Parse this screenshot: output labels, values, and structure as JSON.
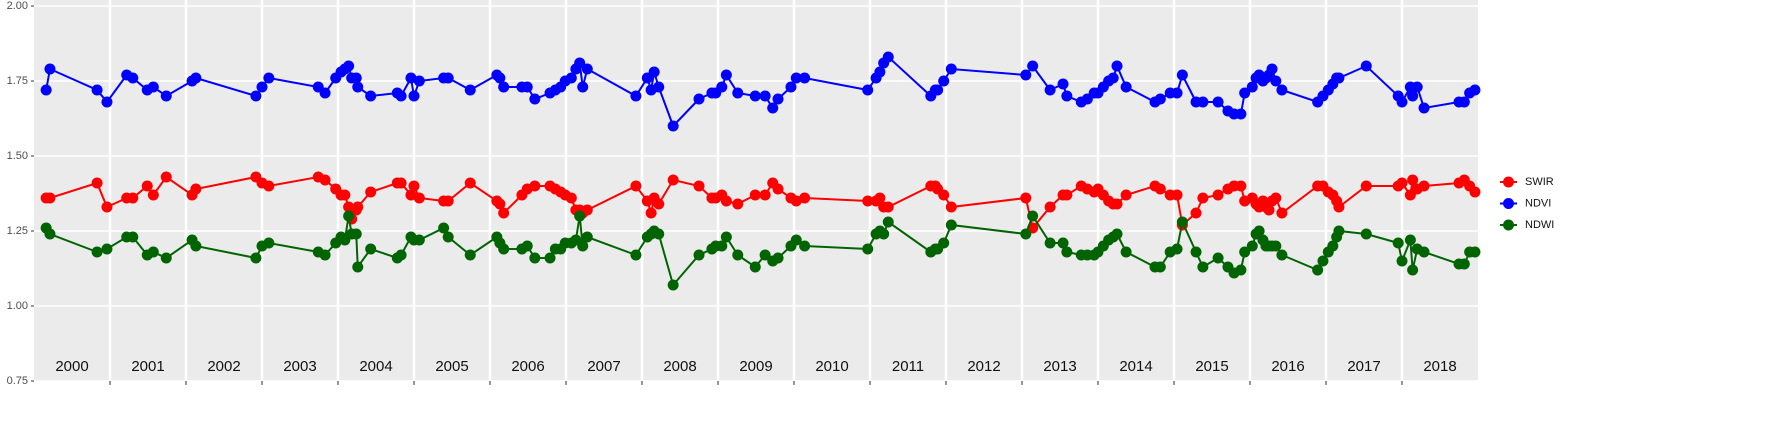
{
  "chart_data": {
    "type": "line",
    "x": [
      2000.16,
      2000.21,
      2000.83,
      2000.96,
      2001.22,
      2001.3,
      2001.49,
      2001.57,
      2001.74,
      2002.08,
      2002.13,
      2002.92,
      2003.0,
      2003.09,
      2003.74,
      2003.83,
      2003.97,
      2004.04,
      2004.09,
      2004.14,
      2004.18,
      2004.24,
      2004.26,
      2004.43,
      2004.78,
      2004.83,
      2004.96,
      2005.0,
      2005.07,
      2005.39,
      2005.45,
      2005.74,
      2006.09,
      2006.13,
      2006.18,
      2006.42,
      2006.49,
      2006.59,
      2006.79,
      2006.86,
      2006.93,
      2006.99,
      2007.07,
      2007.13,
      2007.18,
      2007.22,
      2007.28,
      2007.92,
      2008.07,
      2008.12,
      2008.16,
      2008.22,
      2008.41,
      2008.75,
      2008.92,
      2008.97,
      2009.05,
      2009.11,
      2009.26,
      2009.49,
      2009.62,
      2009.72,
      2009.79,
      2009.96,
      2010.03,
      2010.14,
      2010.97,
      2011.08,
      2011.13,
      2011.18,
      2011.24,
      2011.8,
      2011.86,
      2011.89,
      2011.97,
      2012.07,
      2013.05,
      2013.14,
      2013.37,
      2013.54,
      2013.59,
      2013.78,
      2013.86,
      2013.95,
      2014.0,
      2014.07,
      2014.14,
      2014.2,
      2014.25,
      2014.37,
      2014.75,
      2014.82,
      2014.95,
      2015.04,
      2015.11,
      2015.29,
      2015.38,
      2015.58,
      2015.71,
      2015.79,
      2015.88,
      2015.93,
      2016.03,
      2016.08,
      2016.12,
      2016.17,
      2016.21,
      2016.25,
      2016.29,
      2016.34,
      2016.42,
      2016.89,
      2016.96,
      2017.03,
      2017.09,
      2017.14,
      2017.17,
      2017.53,
      2017.95,
      2018.0,
      2018.11,
      2018.14,
      2018.2,
      2018.29,
      2018.75,
      2018.82,
      2018.89,
      2018.96
    ],
    "series": [
      {
        "name": "SWIR",
        "color": "#ff0000",
        "values": [
          1.36,
          1.36,
          1.41,
          1.33,
          1.36,
          1.36,
          1.4,
          1.37,
          1.43,
          1.37,
          1.39,
          1.43,
          1.41,
          1.4,
          1.43,
          1.42,
          1.39,
          1.37,
          1.37,
          1.33,
          1.29,
          1.32,
          1.33,
          1.38,
          1.41,
          1.41,
          1.37,
          1.4,
          1.36,
          1.35,
          1.35,
          1.41,
          1.35,
          1.34,
          1.31,
          1.37,
          1.39,
          1.4,
          1.4,
          1.39,
          1.38,
          1.37,
          1.36,
          1.32,
          1.32,
          1.31,
          1.32,
          1.4,
          1.35,
          1.31,
          1.36,
          1.34,
          1.42,
          1.4,
          1.36,
          1.36,
          1.37,
          1.35,
          1.34,
          1.37,
          1.37,
          1.41,
          1.39,
          1.36,
          1.35,
          1.36,
          1.35,
          1.35,
          1.36,
          1.33,
          1.33,
          1.4,
          1.4,
          1.39,
          1.37,
          1.33,
          1.36,
          1.26,
          1.33,
          1.37,
          1.37,
          1.4,
          1.39,
          1.38,
          1.39,
          1.37,
          1.35,
          1.34,
          1.34,
          1.37,
          1.4,
          1.39,
          1.37,
          1.37,
          1.27,
          1.31,
          1.36,
          1.37,
          1.39,
          1.4,
          1.4,
          1.35,
          1.36,
          1.34,
          1.33,
          1.35,
          1.33,
          1.32,
          1.35,
          1.36,
          1.31,
          1.4,
          1.4,
          1.38,
          1.37,
          1.35,
          1.33,
          1.4,
          1.4,
          1.41,
          1.37,
          1.42,
          1.39,
          1.4,
          1.41,
          1.42,
          1.4,
          1.38
        ]
      },
      {
        "name": "NDVI",
        "color": "#0000ff",
        "values": [
          1.72,
          1.79,
          1.72,
          1.68,
          1.77,
          1.76,
          1.72,
          1.73,
          1.7,
          1.75,
          1.76,
          1.7,
          1.73,
          1.76,
          1.73,
          1.71,
          1.76,
          1.78,
          1.79,
          1.8,
          1.76,
          1.76,
          1.73,
          1.7,
          1.71,
          1.7,
          1.76,
          1.7,
          1.75,
          1.76,
          1.76,
          1.72,
          1.77,
          1.76,
          1.73,
          1.73,
          1.73,
          1.69,
          1.71,
          1.72,
          1.73,
          1.75,
          1.76,
          1.79,
          1.81,
          1.73,
          1.79,
          1.7,
          1.76,
          1.72,
          1.78,
          1.73,
          1.6,
          1.69,
          1.71,
          1.71,
          1.73,
          1.77,
          1.71,
          1.7,
          1.7,
          1.66,
          1.69,
          1.73,
          1.76,
          1.76,
          1.72,
          1.76,
          1.78,
          1.81,
          1.83,
          1.7,
          1.72,
          1.72,
          1.75,
          1.79,
          1.77,
          1.8,
          1.72,
          1.74,
          1.7,
          1.68,
          1.69,
          1.71,
          1.71,
          1.73,
          1.75,
          1.76,
          1.8,
          1.73,
          1.68,
          1.69,
          1.71,
          1.71,
          1.77,
          1.68,
          1.68,
          1.68,
          1.65,
          1.64,
          1.64,
          1.71,
          1.73,
          1.76,
          1.77,
          1.75,
          1.76,
          1.77,
          1.79,
          1.75,
          1.72,
          1.68,
          1.7,
          1.72,
          1.74,
          1.76,
          1.76,
          1.8,
          1.7,
          1.68,
          1.73,
          1.7,
          1.73,
          1.66,
          1.68,
          1.68,
          1.71,
          1.72
        ]
      },
      {
        "name": "NDWI",
        "color": "#006400",
        "values": [
          1.26,
          1.24,
          1.18,
          1.19,
          1.23,
          1.23,
          1.17,
          1.18,
          1.16,
          1.22,
          1.2,
          1.16,
          1.2,
          1.21,
          1.18,
          1.17,
          1.21,
          1.23,
          1.22,
          1.3,
          1.24,
          1.24,
          1.13,
          1.19,
          1.16,
          1.17,
          1.23,
          1.22,
          1.22,
          1.26,
          1.23,
          1.17,
          1.23,
          1.21,
          1.19,
          1.19,
          1.2,
          1.16,
          1.16,
          1.19,
          1.19,
          1.21,
          1.21,
          1.22,
          1.3,
          1.2,
          1.23,
          1.17,
          1.23,
          1.24,
          1.25,
          1.24,
          1.07,
          1.17,
          1.19,
          1.2,
          1.2,
          1.23,
          1.17,
          1.13,
          1.17,
          1.15,
          1.16,
          1.2,
          1.22,
          1.2,
          1.19,
          1.24,
          1.25,
          1.24,
          1.28,
          1.18,
          1.19,
          1.19,
          1.21,
          1.27,
          1.24,
          1.3,
          1.21,
          1.21,
          1.18,
          1.17,
          1.17,
          1.17,
          1.18,
          1.2,
          1.22,
          1.23,
          1.24,
          1.18,
          1.13,
          1.13,
          1.18,
          1.19,
          1.28,
          1.18,
          1.13,
          1.16,
          1.13,
          1.11,
          1.12,
          1.18,
          1.2,
          1.24,
          1.25,
          1.22,
          1.2,
          1.2,
          1.2,
          1.2,
          1.17,
          1.12,
          1.15,
          1.18,
          1.2,
          1.23,
          1.25,
          1.24,
          1.21,
          1.15,
          1.22,
          1.12,
          1.19,
          1.18,
          1.14,
          1.14,
          1.18,
          1.18
        ]
      }
    ],
    "xlim": [
      2000,
      2019
    ],
    "xticks": [
      {
        "value": 2000.5,
        "label": "2000"
      },
      {
        "value": 2001.5,
        "label": "2001"
      },
      {
        "value": 2002.5,
        "label": "2002"
      },
      {
        "value": 2003.5,
        "label": "2003"
      },
      {
        "value": 2004.5,
        "label": "2004"
      },
      {
        "value": 2005.5,
        "label": "2005"
      },
      {
        "value": 2006.5,
        "label": "2006"
      },
      {
        "value": 2007.5,
        "label": "2007"
      },
      {
        "value": 2008.5,
        "label": "2008"
      },
      {
        "value": 2009.5,
        "label": "2009"
      },
      {
        "value": 2010.5,
        "label": "2010"
      },
      {
        "value": 2011.5,
        "label": "2011"
      },
      {
        "value": 2012.5,
        "label": "2012"
      },
      {
        "value": 2013.5,
        "label": "2013"
      },
      {
        "value": 2014.5,
        "label": "2014"
      },
      {
        "value": 2015.5,
        "label": "2015"
      },
      {
        "value": 2016.5,
        "label": "2016"
      },
      {
        "value": 2017.5,
        "label": "2017"
      },
      {
        "value": 2018.5,
        "label": "2018"
      }
    ],
    "ylim": [
      0.75,
      2.0
    ],
    "yticks": [
      0.75,
      {
        "value": 1,
        "label": "1.00"
      },
      1.25,
      {
        "value": 1.5,
        "label": "1.50"
      },
      1.75,
      {
        "value": 2,
        "label": "2.00"
      }
    ],
    "grid": true,
    "legend": "right"
  }
}
